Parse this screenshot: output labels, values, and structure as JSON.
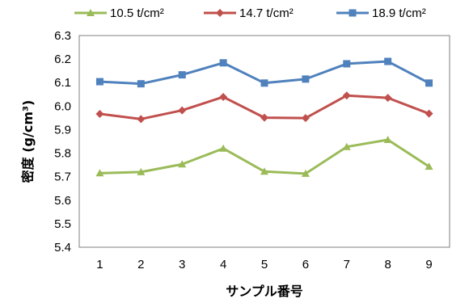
{
  "chart_data": {
    "type": "line",
    "xlabel": "サンプル番号",
    "ylabel": "密度 (g/cm³)",
    "categories": [
      "1",
      "2",
      "3",
      "4",
      "5",
      "6",
      "7",
      "8",
      "9"
    ],
    "ylim": [
      5.4,
      6.3
    ],
    "yticks": [
      "5.4",
      "5.5",
      "5.6",
      "5.7",
      "5.8",
      "5.9",
      "6.0",
      "6.1",
      "6.2",
      "6.3"
    ],
    "grid": false,
    "legend_position": "top",
    "series": [
      {
        "name": "10.5 t/cm²",
        "color": "#9BBB59",
        "marker": "triangle",
        "values": [
          5.715,
          5.72,
          5.753,
          5.82,
          5.722,
          5.713,
          5.827,
          5.857,
          5.743
        ]
      },
      {
        "name": "14.7 t/cm²",
        "color": "#C0504D",
        "marker": "diamond",
        "values": [
          5.967,
          5.945,
          5.982,
          6.039,
          5.951,
          5.949,
          6.045,
          6.035,
          5.968
        ]
      },
      {
        "name": "18.9 t/cm²",
        "color": "#4F81BD",
        "marker": "square",
        "values": [
          6.104,
          6.095,
          6.133,
          6.184,
          6.098,
          6.115,
          6.18,
          6.19,
          6.098
        ]
      }
    ]
  }
}
